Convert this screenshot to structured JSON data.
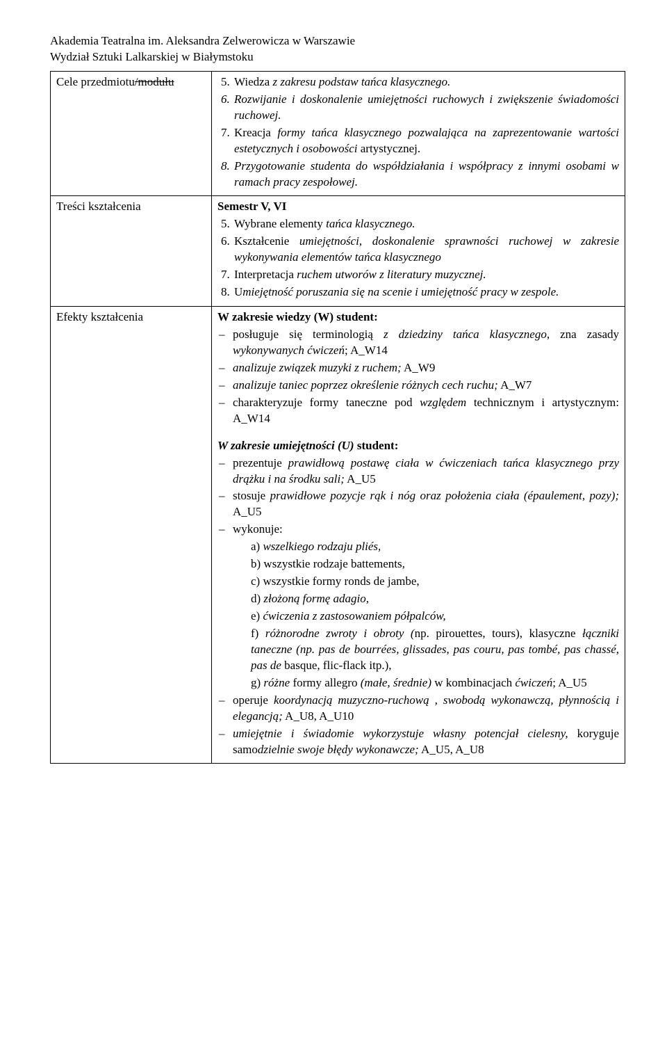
{
  "header": {
    "line1": "Akademia Teatralna im. Aleksandra Zelwerowicza w Warszawie",
    "line2": "Wydział Sztuki Lalkarskiej w Białymstoku"
  },
  "rows": {
    "cele": {
      "label_prefix": "Cele przedmiotu",
      "label_strike": "/modułu",
      "items": {
        "n5_pre": "Wiedza ",
        "n5_ital": "z zakresu podstaw tańca klasycznego.",
        "n6": "Rozwijanie i doskonalenie  umiejętności ruchowych i zwiększenie świadomości ruchowej.",
        "n7_pre": "Kreacja ",
        "n7_ital_a": "formy tańca klasycznego pozwalająca na zaprezentowanie  wartości estetycznych i osobowości",
        "n7_post": " artystycznej.",
        "n8": "Przygotowanie studenta do współdziałania i współpracy z innymi osobami w ramach pracy zespołowej."
      }
    },
    "tresci": {
      "label": "Treści kształcenia",
      "sem_label": "Semestr V, VI",
      "items": {
        "n5_pre": "Wybrane  elementy ",
        "n5_ital": "tańca klasycznego.",
        "n6_pre": "Kształcenie ",
        "n6_ital": "umiejętności, doskonalenie sprawności ruchowej w zakresie wykonywania elementów tańca klasycznego",
        "n7_pre": "Interpretacja ",
        "n7_ital": "ruchem utworów z literatury muzycznej.",
        "n8_pre": "U",
        "n8_ital": "miejętność poruszania się na scenie i umiejętność pracy w zespole."
      }
    },
    "efekty": {
      "label": "Efekty kształcenia",
      "W": {
        "title": "W zakresie wiedzy (W) student:",
        "b1_pre": "posługuje się terminologią ",
        "b1_ital": "z dziedziny tańca klasycznego,",
        "b1_post1": " zna zasady ",
        "b1_ital2": "wykonywanych ćwiczeń",
        "b1_code": "; A_W14",
        "b2_ital": "analizuje związek muzyki z ruchem;",
        "b2_code": " A_W9",
        "b3_ital": "analizuje taniec poprzez określenie różnych cech ruchu;",
        "b3_code": " A_W7",
        "b4_pre": "charakteryzuje formy taneczne pod ",
        "b4_ital": "względem",
        "b4_post": " technicznym i artystycznym: A_W14"
      },
      "U": {
        "title_pre": "W zakresie umiejętności (U)",
        "title_post": " student:",
        "b1_pre": "prezentuje ",
        "b1_ital": "prawidłową postawę ciała w ćwiczeniach tańca klasycznego przy drążku i na środku sali;",
        "b1_code": " A_U5",
        "b2_pre": "stosuje ",
        "b2_ital": "prawidłowe pozycje rąk i nóg oraz położenia ciała (épaulement, pozy);",
        "b2_code": " A_U5",
        "b3": "wykonuje:",
        "sub": {
          "a_pre": "a)  ",
          "a_ital": "wszelkiego rodzaju pliés,",
          "b_pre": "b)  ",
          "b_txt": "wszystkie rodzaje battements,",
          "c_pre": "c)  ",
          "c_txt": "wszystkie formy ronds de jambe,",
          "d_pre": "d)  ",
          "d_ital": "złożoną formę adagio,",
          "e_pre": "e)  ",
          "e_ital": "ćwiczenia z zastosowaniem półpalców,",
          "f_pre": "f)  ",
          "f_ital_a": "różnorodne zwroty i obroty (",
          "f_txt_a": "np. pirouettes, tours), klasyczne ",
          "f_ital_b": "łączniki taneczne (np. pas de bourrées, glissades, pas couru, pas tombé, pas chassé, pas de",
          "f_txt_b": " basque, flic-flack itp.),",
          "g_pre": "g)  ",
          "g_ital_a": "różne",
          "g_txt_a": " formy allegro ",
          "g_ital_b": "(małe, średnie)",
          "g_txt_b": " w kombinacjach ",
          "g_ital_c": "ćwiczeń",
          "g_code": "; A_U5"
        },
        "b4_pre": "operuje ",
        "b4_ital": "koordynacją muzyczno-ruchową , swobodą wykonawczą, płynnością i elegancją;",
        "b4_code": " A_U8, A_U10",
        "b5_ital": "umiejętnie i świadomie wykorzystuje własny potencjał cielesny,",
        "b5_txt_a": " koryguje samo",
        "b5_ital_b": "dzielnie swoje błędy wykonawcze;",
        "b5_code": " A_U5, A_U8"
      }
    }
  }
}
